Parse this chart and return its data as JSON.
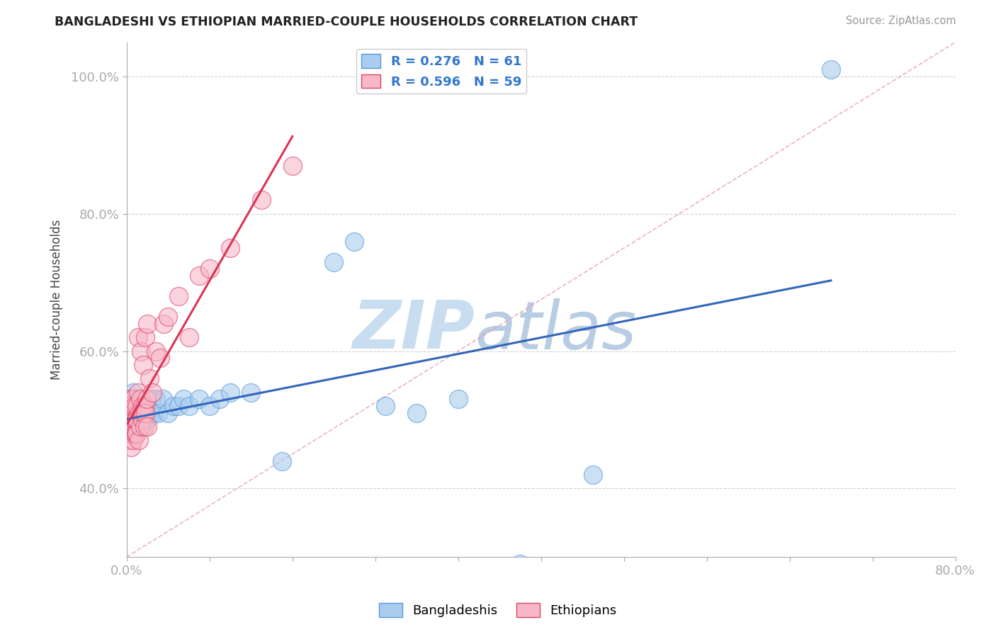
{
  "title": "BANGLADESHI VS ETHIOPIAN MARRIED-COUPLE HOUSEHOLDS CORRELATION CHART",
  "source_text": "Source: ZipAtlas.com",
  "ylabel": "Married-couple Households",
  "xlim": [
    0.0,
    0.8
  ],
  "ylim": [
    0.3,
    1.05
  ],
  "x_ticks": [
    0.0,
    0.08,
    0.16,
    0.24,
    0.32,
    0.4,
    0.48,
    0.56,
    0.64,
    0.72,
    0.8
  ],
  "y_ticks": [
    0.4,
    0.6,
    0.8,
    1.0
  ],
  "y_tick_labels": [
    "40.0%",
    "60.0%",
    "80.0%",
    "100.0%"
  ],
  "legend_label_1": "R = 0.276   N = 61",
  "legend_label_2": "R = 0.596   N = 59",
  "bangladeshi_color": "#aaccee",
  "ethiopian_color": "#f8b8c8",
  "bangladeshi_edge_color": "#5599dd",
  "ethiopian_edge_color": "#dd4466",
  "bangladeshi_line_color": "#3366bb",
  "ethiopian_line_color": "#dd3355",
  "diag_line_color": "#e8a0b0",
  "grid_color": "#cccccc",
  "watermark_zip_color": "#c8ddf0",
  "watermark_atlas_color": "#b8cce4",
  "background_color": "#ffffff",
  "bangladeshi_x": [
    0.001,
    0.002,
    0.002,
    0.003,
    0.003,
    0.003,
    0.004,
    0.004,
    0.004,
    0.005,
    0.005,
    0.005,
    0.006,
    0.006,
    0.007,
    0.007,
    0.007,
    0.008,
    0.008,
    0.009,
    0.009,
    0.01,
    0.01,
    0.011,
    0.011,
    0.012,
    0.012,
    0.013,
    0.014,
    0.015,
    0.015,
    0.016,
    0.017,
    0.018,
    0.019,
    0.02,
    0.022,
    0.024,
    0.026,
    0.028,
    0.03,
    0.035,
    0.04,
    0.045,
    0.05,
    0.055,
    0.06,
    0.07,
    0.08,
    0.09,
    0.1,
    0.12,
    0.15,
    0.2,
    0.22,
    0.25,
    0.28,
    0.32,
    0.38,
    0.45,
    0.68
  ],
  "bangladeshi_y": [
    0.51,
    0.5,
    0.49,
    0.52,
    0.5,
    0.48,
    0.51,
    0.49,
    0.53,
    0.5,
    0.48,
    0.52,
    0.5,
    0.54,
    0.49,
    0.51,
    0.53,
    0.5,
    0.48,
    0.51,
    0.49,
    0.5,
    0.52,
    0.51,
    0.49,
    0.5,
    0.52,
    0.51,
    0.5,
    0.52,
    0.49,
    0.51,
    0.5,
    0.52,
    0.51,
    0.5,
    0.51,
    0.53,
    0.51,
    0.53,
    0.51,
    0.53,
    0.51,
    0.52,
    0.52,
    0.53,
    0.52,
    0.53,
    0.52,
    0.53,
    0.54,
    0.54,
    0.44,
    0.73,
    0.76,
    0.52,
    0.51,
    0.53,
    0.29,
    0.42,
    1.01
  ],
  "ethiopian_x": [
    0.001,
    0.001,
    0.002,
    0.002,
    0.002,
    0.003,
    0.003,
    0.003,
    0.004,
    0.004,
    0.004,
    0.005,
    0.005,
    0.005,
    0.006,
    0.006,
    0.006,
    0.007,
    0.007,
    0.008,
    0.008,
    0.008,
    0.009,
    0.009,
    0.01,
    0.01,
    0.01,
    0.011,
    0.011,
    0.012,
    0.012,
    0.013,
    0.013,
    0.014,
    0.014,
    0.015,
    0.015,
    0.016,
    0.016,
    0.017,
    0.017,
    0.018,
    0.018,
    0.019,
    0.02,
    0.02,
    0.022,
    0.025,
    0.028,
    0.032,
    0.036,
    0.04,
    0.05,
    0.06,
    0.07,
    0.08,
    0.1,
    0.13,
    0.16
  ],
  "ethiopian_y": [
    0.49,
    0.51,
    0.48,
    0.52,
    0.5,
    0.47,
    0.51,
    0.53,
    0.46,
    0.49,
    0.52,
    0.48,
    0.51,
    0.49,
    0.5,
    0.47,
    0.53,
    0.49,
    0.51,
    0.48,
    0.5,
    0.52,
    0.5,
    0.48,
    0.52,
    0.5,
    0.48,
    0.62,
    0.54,
    0.51,
    0.47,
    0.53,
    0.49,
    0.51,
    0.6,
    0.5,
    0.52,
    0.51,
    0.58,
    0.52,
    0.49,
    0.62,
    0.51,
    0.53,
    0.49,
    0.64,
    0.56,
    0.54,
    0.6,
    0.59,
    0.64,
    0.65,
    0.68,
    0.62,
    0.71,
    0.72,
    0.75,
    0.82,
    0.87
  ]
}
